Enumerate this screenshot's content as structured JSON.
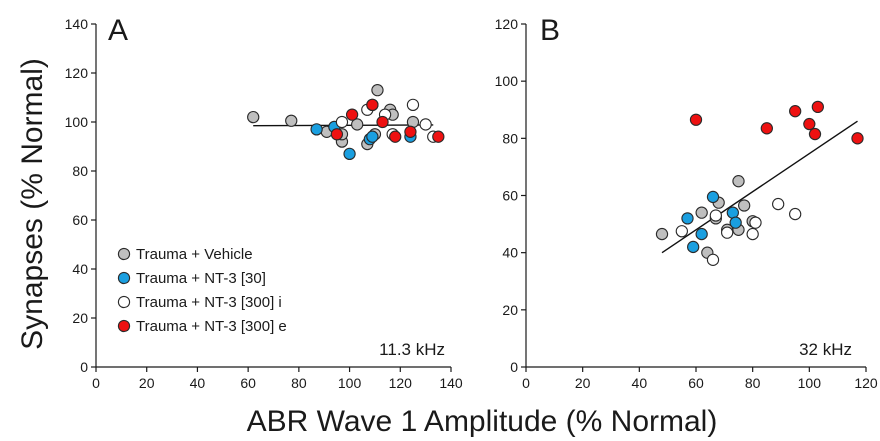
{
  "ylabel": "Synapses (% Normal)",
  "xlabel": "ABR Wave 1 Amplitude (% Normal)",
  "colors": {
    "vehicle": "#bfbfbf",
    "nt3_30": "#1a9fe0",
    "nt3_300_i": "#ffffff",
    "nt3_300_e": "#ee1111",
    "outline_red": "#ee1111",
    "outline_dark": "#333333"
  },
  "legend": [
    {
      "key": "vehicle",
      "label": "Trauma + Vehicle"
    },
    {
      "key": "nt3_30",
      "label": "Trauma + NT-3 [30]"
    },
    {
      "key": "nt3_300_i",
      "label": "Trauma + NT-3 [300] i"
    },
    {
      "key": "nt3_300_e",
      "label": "Trauma + NT-3 [300] e"
    }
  ],
  "chart_data": [
    {
      "type": "scatter",
      "panel": "A",
      "freq": "11.3 kHz",
      "xlim": [
        0,
        140
      ],
      "ylim": [
        0,
        140
      ],
      "xticks": [
        0,
        20,
        40,
        60,
        80,
        100,
        120,
        140
      ],
      "yticks": [
        0,
        20,
        40,
        60,
        80,
        100,
        120,
        140
      ],
      "fit": [
        [
          62,
          98.5
        ],
        [
          133,
          98.8
        ]
      ],
      "series": [
        {
          "key": "vehicle",
          "points": [
            [
              62,
              102
            ],
            [
              77,
              100.5
            ],
            [
              91,
              96
            ],
            [
              97,
              92
            ],
            [
              97,
              95
            ],
            [
              103,
              99
            ],
            [
              107,
              91
            ],
            [
              110,
              95
            ],
            [
              111,
              113
            ],
            [
              116,
              105
            ],
            [
              117,
              103
            ],
            [
              125,
              100
            ]
          ]
        },
        {
          "key": "nt3_30",
          "points": [
            [
              87,
              97
            ],
            [
              94,
              98
            ],
            [
              100,
              87
            ],
            [
              108,
              93
            ],
            [
              109,
              94
            ],
            [
              124,
              94
            ]
          ]
        },
        {
          "key": "nt3_300_i",
          "points": [
            [
              97,
              100
            ],
            [
              107,
              105
            ],
            [
              109,
              107
            ],
            [
              114,
              103
            ],
            [
              117,
              95
            ],
            [
              125,
              107
            ],
            [
              130,
              99
            ],
            [
              133,
              94
            ]
          ]
        },
        {
          "key": "nt3_300_e",
          "points": [
            [
              95,
              95
            ],
            [
              101,
              103
            ],
            [
              109,
              107
            ],
            [
              113,
              100
            ],
            [
              118,
              94
            ],
            [
              124,
              96
            ],
            [
              135,
              94
            ]
          ]
        }
      ]
    },
    {
      "type": "scatter",
      "panel": "B",
      "freq": "32 kHz",
      "xlim": [
        0,
        120
      ],
      "ylim": [
        0,
        120
      ],
      "xticks": [
        0,
        20,
        40,
        60,
        80,
        100,
        120
      ],
      "yticks": [
        0,
        20,
        40,
        60,
        80,
        100,
        120
      ],
      "fit": [
        [
          48,
          40
        ],
        [
          117,
          86
        ]
      ],
      "series": [
        {
          "key": "vehicle",
          "points": [
            [
              48,
              46.5
            ],
            [
              62,
              54
            ],
            [
              64,
              40
            ],
            [
              67,
              52
            ],
            [
              68,
              57.5
            ],
            [
              71,
              48
            ],
            [
              75,
              48
            ],
            [
              75,
              65
            ],
            [
              77,
              56.5
            ],
            [
              80,
              51
            ]
          ]
        },
        {
          "key": "nt3_30",
          "points": [
            [
              57,
              52
            ],
            [
              59,
              42
            ],
            [
              62,
              46.5
            ],
            [
              66,
              59.5
            ],
            [
              73,
              54
            ],
            [
              74,
              50.5
            ]
          ]
        },
        {
          "key": "nt3_300_i",
          "points": [
            [
              55,
              47.5
            ],
            [
              66,
              37.5
            ],
            [
              67,
              53
            ],
            [
              71,
              47
            ],
            [
              80,
              46.5
            ],
            [
              81,
              50.5
            ],
            [
              89,
              57
            ],
            [
              95,
              53.5
            ]
          ]
        },
        {
          "key": "nt3_300_e",
          "points": [
            [
              60,
              86.5
            ],
            [
              85,
              83.5
            ],
            [
              95,
              89.5
            ],
            [
              100,
              85
            ],
            [
              102,
              81.5
            ],
            [
              103,
              91
            ],
            [
              117,
              80
            ]
          ]
        }
      ]
    }
  ]
}
